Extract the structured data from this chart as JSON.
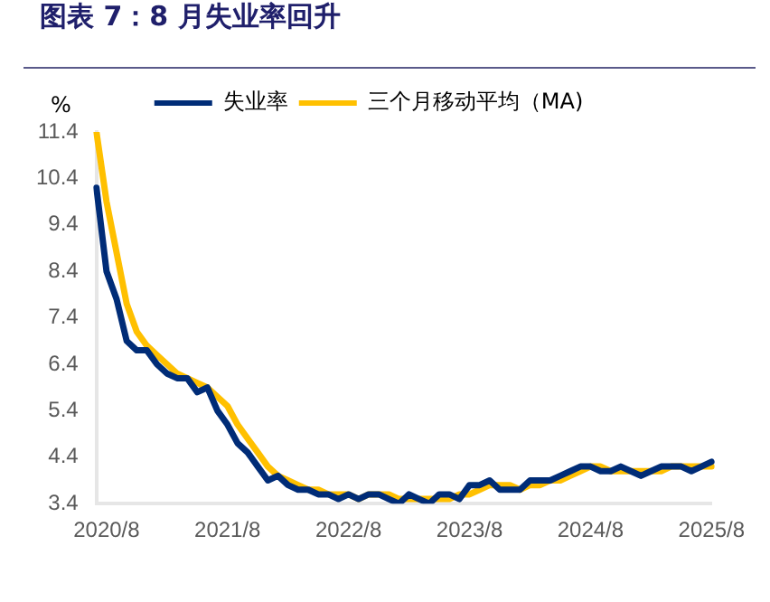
{
  "chart_data": {
    "type": "line",
    "title": "图表 7：8 月失业率回升",
    "ylabel": "%",
    "categories": [
      null,
      "2020/8",
      null,
      null,
      null,
      null,
      null,
      null,
      null,
      null,
      null,
      null,
      null,
      "2021/8",
      null,
      null,
      null,
      null,
      null,
      null,
      null,
      null,
      null,
      null,
      null,
      "2022/8",
      null,
      null,
      null,
      null,
      null,
      null,
      null,
      null,
      null,
      null,
      null,
      "2023/8",
      null,
      null,
      null,
      null,
      null,
      null,
      null,
      null,
      null,
      null,
      null,
      "2024/8",
      null,
      null,
      null,
      null,
      null,
      null,
      null,
      null,
      null,
      null,
      null,
      "2025/8"
    ],
    "series": [
      {
        "name": "失业率",
        "color": "#002c77",
        "values": [
          10.2,
          8.4,
          7.8,
          6.9,
          6.7,
          6.7,
          6.4,
          6.2,
          6.1,
          6.1,
          5.8,
          5.9,
          5.4,
          5.1,
          4.7,
          4.5,
          4.2,
          3.9,
          4.0,
          3.8,
          3.7,
          3.7,
          3.6,
          3.6,
          3.5,
          3.6,
          3.5,
          3.6,
          3.6,
          3.5,
          3.4,
          3.6,
          3.5,
          3.4,
          3.6,
          3.6,
          3.5,
          3.8,
          3.8,
          3.9,
          3.7,
          3.7,
          3.7,
          3.9,
          3.9,
          3.9,
          4.0,
          4.1,
          4.2,
          4.2,
          4.1,
          4.1,
          4.2,
          4.1,
          4.0,
          4.1,
          4.2,
          4.2,
          4.2,
          4.1,
          4.2,
          4.3
        ]
      },
      {
        "name": "三个月移动平均（MA)",
        "color": "#ffc000",
        "values": [
          11.4,
          9.9,
          8.8,
          7.7,
          7.1,
          6.8,
          6.6,
          6.4,
          6.2,
          6.1,
          6.0,
          5.9,
          5.7,
          5.5,
          5.1,
          4.8,
          4.5,
          4.2,
          4.0,
          3.9,
          3.8,
          3.7,
          3.7,
          3.6,
          3.6,
          3.6,
          3.5,
          3.6,
          3.6,
          3.6,
          3.5,
          3.5,
          3.5,
          3.5,
          3.5,
          3.5,
          3.6,
          3.6,
          3.7,
          3.8,
          3.8,
          3.8,
          3.7,
          3.8,
          3.8,
          3.9,
          3.9,
          4.0,
          4.1,
          4.2,
          4.2,
          4.1,
          4.1,
          4.1,
          4.1,
          4.1,
          4.1,
          4.2,
          4.2,
          4.2,
          4.2,
          4.2
        ]
      }
    ],
    "ylim": [
      3.4,
      11.4
    ],
    "yticks": [
      3.4,
      4.4,
      5.4,
      6.4,
      7.4,
      8.4,
      9.4,
      10.4,
      11.4
    ],
    "grid": false,
    "legend": "top",
    "marker": "none",
    "line_style": "solid"
  }
}
